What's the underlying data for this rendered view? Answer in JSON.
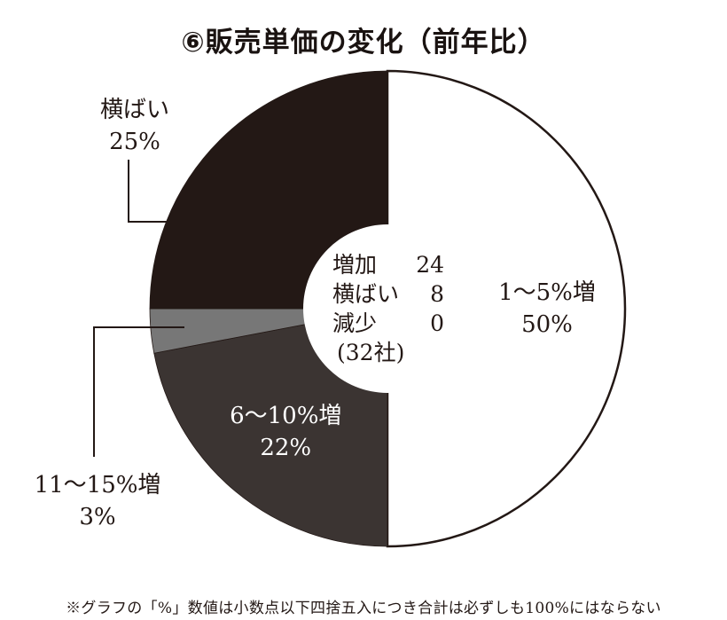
{
  "chart_data": {
    "type": "pie",
    "title": "⑥販売単価の変化（前年比）",
    "slices": [
      {
        "label": "1～5%増",
        "value": 50,
        "value_label": "50%",
        "color": "#ffffff"
      },
      {
        "label": "6～10%増",
        "value": 22,
        "value_label": "22%",
        "color": "#3b3432"
      },
      {
        "label": "11～15%増",
        "value": 3,
        "value_label": "3%",
        "color": "#777777"
      },
      {
        "label": "横ばい",
        "value": 25,
        "value_label": "25%",
        "color": "#231815"
      }
    ],
    "center": {
      "rows": [
        {
          "label": "増加",
          "value": "24"
        },
        {
          "label": "横ばい",
          "value": "8"
        },
        {
          "label": "減少",
          "value": "0"
        }
      ],
      "total": "(32社)"
    }
  },
  "footnote": "※グラフの「%」数値は小数点以下四捨五入につき合計は必ずしも100%にはならない"
}
